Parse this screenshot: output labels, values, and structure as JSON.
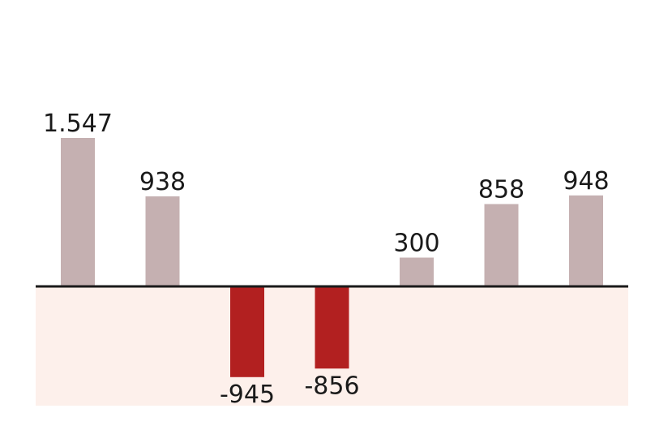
{
  "chart_data": {
    "type": "bar",
    "title": "",
    "xlabel": "",
    "ylabel": "",
    "categories": [
      "",
      "",
      "",
      "",
      "",
      "",
      ""
    ],
    "values": [
      1547,
      938,
      -945,
      -856,
      300,
      858,
      948
    ],
    "data_labels": [
      "1.547",
      "938",
      "-945",
      "-856",
      "300",
      "858",
      "948"
    ],
    "ylim": [
      -1240,
      2000
    ],
    "grid": false,
    "colors": {
      "positive": "#c5b0b1",
      "negative": "#b22020",
      "negative_zone": "#fdf0eb",
      "baseline": "#1a1a1a"
    }
  }
}
